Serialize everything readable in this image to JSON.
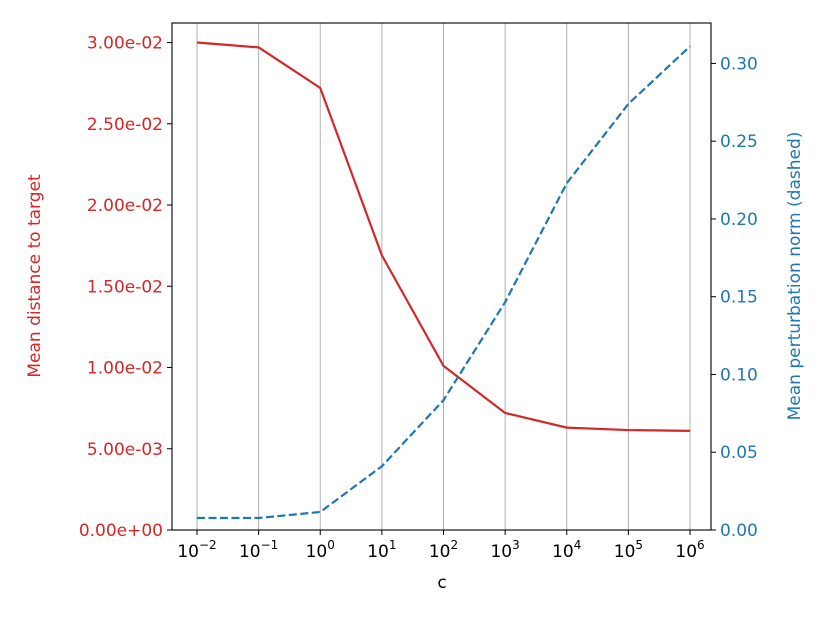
{
  "chart_data": {
    "type": "line",
    "xlabel": "c",
    "ylabel": "Mean distance to target",
    "y2label": "Mean perturbation norm (dashed)",
    "xscale": "log",
    "grid": "x",
    "x": [
      0.01,
      0.1,
      1,
      10,
      100,
      1000,
      10000,
      100000,
      1000000
    ],
    "xlim": [
      0.00393,
      2190000
    ],
    "xticks": [
      {
        "value": 0.01,
        "label": "10",
        "exponent": "−2"
      },
      {
        "value": 0.1,
        "label": "10",
        "exponent": "−1"
      },
      {
        "value": 1,
        "label": "10",
        "exponent": "0"
      },
      {
        "value": 10,
        "label": "10",
        "exponent": "1"
      },
      {
        "value": 100,
        "label": "10",
        "exponent": "2"
      },
      {
        "value": 1000,
        "label": "10",
        "exponent": "3"
      },
      {
        "value": 10000,
        "label": "10",
        "exponent": "4"
      },
      {
        "value": 100000,
        "label": "10",
        "exponent": "5"
      },
      {
        "value": 1000000,
        "label": "10",
        "exponent": "6"
      }
    ],
    "ylim": [
      0,
      0.0312
    ],
    "yticks": [
      {
        "value": 0,
        "label": "0.00e+00"
      },
      {
        "value": 0.005,
        "label": "5.00e-03"
      },
      {
        "value": 0.01,
        "label": "1.00e-02"
      },
      {
        "value": 0.015,
        "label": "1.50e-02"
      },
      {
        "value": 0.02,
        "label": "2.00e-02"
      },
      {
        "value": 0.025,
        "label": "2.50e-02"
      },
      {
        "value": 0.03,
        "label": "3.00e-02"
      }
    ],
    "y2lim": [
      0,
      0.326
    ],
    "y2ticks": [
      {
        "value": 0,
        "label": "0.00"
      },
      {
        "value": 0.05,
        "label": "0.05"
      },
      {
        "value": 0.1,
        "label": "0.10"
      },
      {
        "value": 0.15,
        "label": "0.15"
      },
      {
        "value": 0.2,
        "label": "0.20"
      },
      {
        "value": 0.25,
        "label": "0.25"
      },
      {
        "value": 0.3,
        "label": "0.30"
      }
    ],
    "series": [
      {
        "color": "#d62728",
        "dash": "solid",
        "values": [
          0.03,
          0.0297,
          0.0272,
          0.0169,
          0.0101,
          0.0072,
          0.0063,
          0.00615,
          0.0061
        ]
      },
      {
        "color": "#1f77b4",
        "dash": "dashed",
        "axis": "y2",
        "values": [
          0.0077,
          0.0077,
          0.0116,
          0.041,
          0.0835,
          0.1465,
          0.223,
          0.274,
          0.311
        ]
      }
    ]
  }
}
